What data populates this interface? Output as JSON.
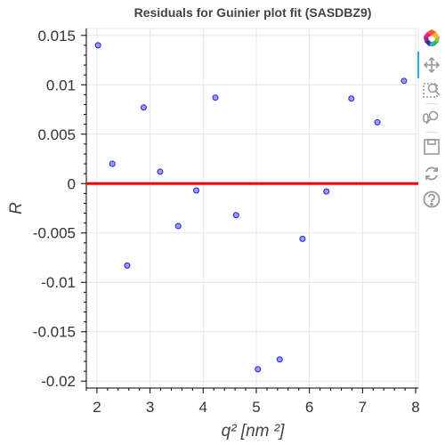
{
  "chart_data": {
    "type": "scatter",
    "title": "Residuals for Guinier plot fit (SASDBZ9)",
    "xlabel": "q² [nm ²]",
    "ylabel": "R",
    "xlim": [
      1.8,
      8.05
    ],
    "ylim": [
      -0.0207,
      0.0157
    ],
    "x_ticks": [
      2,
      3,
      4,
      5,
      6,
      7,
      8
    ],
    "x_tick_labels": [
      "2",
      "3",
      "4",
      "5",
      "6",
      "7",
      "8"
    ],
    "y_ticks": [
      0.015,
      0.01,
      0.005,
      0,
      -0.005,
      -0.01,
      -0.015,
      -0.02
    ],
    "y_tick_labels": [
      "0.015",
      "0.01",
      "0.005",
      "0",
      "-0.005",
      "-0.01",
      "-0.015",
      "-0.02"
    ],
    "grid": true,
    "reference_line": {
      "y": 0,
      "color": "#ff0000"
    },
    "marker": {
      "fill": "#9a9aff",
      "stroke": "#2222cc"
    },
    "points": [
      {
        "x": 2.02,
        "y": 0.014
      },
      {
        "x": 2.29,
        "y": 0.002
      },
      {
        "x": 2.57,
        "y": -0.0083
      },
      {
        "x": 2.88,
        "y": 0.0077
      },
      {
        "x": 3.19,
        "y": 0.0012
      },
      {
        "x": 3.53,
        "y": -0.0043
      },
      {
        "x": 3.87,
        "y": -0.0007
      },
      {
        "x": 4.23,
        "y": 0.0087
      },
      {
        "x": 4.62,
        "y": -0.0032
      },
      {
        "x": 5.03,
        "y": -0.0188
      },
      {
        "x": 5.44,
        "y": -0.0178
      },
      {
        "x": 5.87,
        "y": -0.0056
      },
      {
        "x": 6.32,
        "y": -0.0008
      },
      {
        "x": 6.79,
        "y": 0.0086
      },
      {
        "x": 7.28,
        "y": 0.0062
      },
      {
        "x": 7.78,
        "y": 0.0104
      }
    ]
  },
  "toolbar": {
    "tools": [
      "bokeh-logo-icon",
      "pan-icon",
      "box-zoom-icon",
      "wheel-zoom-icon",
      "save-icon",
      "reset-icon",
      "help-icon"
    ]
  }
}
